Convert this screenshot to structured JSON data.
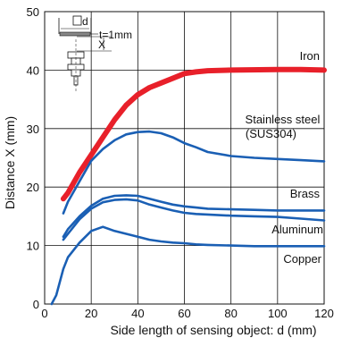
{
  "chart_data": {
    "type": "line",
    "xlabel": "Side length of sensing object: d (mm)",
    "ylabel": "Distance X (mm)",
    "xlim": [
      0,
      120
    ],
    "ylim": [
      0,
      50
    ],
    "xticks": [
      "0",
      "20",
      "40",
      "60",
      "80",
      "100",
      "120"
    ],
    "yticks": [
      "0",
      "10",
      "20",
      "30",
      "40",
      "50"
    ],
    "grid": true,
    "legend": "none",
    "inset_diagram": {
      "labels": [
        "d",
        "t=1mm",
        "X"
      ]
    },
    "series": [
      {
        "name": "Iron",
        "color": "#e8202a",
        "points": [
          [
            8,
            18
          ],
          [
            10,
            19
          ],
          [
            15,
            22.5
          ],
          [
            20,
            25.5
          ],
          [
            25,
            28.5
          ],
          [
            30,
            31.5
          ],
          [
            35,
            34
          ],
          [
            40,
            35.8
          ],
          [
            45,
            37
          ],
          [
            50,
            37.8
          ],
          [
            55,
            38.6
          ],
          [
            60,
            39.4
          ],
          [
            65,
            39.7
          ],
          [
            70,
            39.9
          ],
          [
            80,
            40
          ],
          [
            100,
            40.1
          ],
          [
            110,
            40.1
          ],
          [
            120,
            40
          ]
        ]
      },
      {
        "name": "Stainless steel\n(SUS304)",
        "color": "#1a5fb4",
        "points": [
          [
            8,
            15.5
          ],
          [
            10,
            17.5
          ],
          [
            15,
            21
          ],
          [
            20,
            24.5
          ],
          [
            25,
            26.5
          ],
          [
            30,
            28
          ],
          [
            35,
            29
          ],
          [
            40,
            29.4
          ],
          [
            45,
            29.5
          ],
          [
            50,
            29.2
          ],
          [
            55,
            28.5
          ],
          [
            60,
            27.5
          ],
          [
            65,
            26.8
          ],
          [
            70,
            26
          ],
          [
            80,
            25.3
          ],
          [
            90,
            25
          ],
          [
            100,
            24.8
          ],
          [
            110,
            24.6
          ],
          [
            120,
            24.4
          ]
        ]
      },
      {
        "name": "Brass",
        "color": "#1a5fb4",
        "points": [
          [
            8,
            11.5
          ],
          [
            10,
            12.8
          ],
          [
            15,
            15
          ],
          [
            20,
            16.8
          ],
          [
            25,
            18
          ],
          [
            30,
            18.5
          ],
          [
            35,
            18.6
          ],
          [
            40,
            18.5
          ],
          [
            45,
            18
          ],
          [
            50,
            17.5
          ],
          [
            55,
            17
          ],
          [
            60,
            16.7
          ],
          [
            65,
            16.5
          ],
          [
            70,
            16.3
          ],
          [
            80,
            16.2
          ],
          [
            90,
            16.1
          ],
          [
            100,
            16
          ],
          [
            110,
            16
          ],
          [
            120,
            16
          ]
        ]
      },
      {
        "name": "Aluminum",
        "color": "#1a5fb4",
        "points": [
          [
            8,
            11
          ],
          [
            10,
            12
          ],
          [
            15,
            14.5
          ],
          [
            20,
            16.3
          ],
          [
            25,
            17.4
          ],
          [
            30,
            17.8
          ],
          [
            35,
            17.9
          ],
          [
            40,
            17.7
          ],
          [
            45,
            17
          ],
          [
            50,
            16.5
          ],
          [
            55,
            16
          ],
          [
            60,
            15.6
          ],
          [
            65,
            15.4
          ],
          [
            70,
            15.3
          ],
          [
            80,
            15.1
          ],
          [
            90,
            15
          ],
          [
            100,
            14.9
          ],
          [
            110,
            14.6
          ],
          [
            120,
            14.3
          ]
        ]
      },
      {
        "name": "Copper",
        "color": "#1a5fb4",
        "points": [
          [
            3,
            0
          ],
          [
            5,
            1.5
          ],
          [
            8,
            6
          ],
          [
            10,
            8
          ],
          [
            15,
            10.5
          ],
          [
            20,
            12.5
          ],
          [
            25,
            13.2
          ],
          [
            30,
            12.5
          ],
          [
            35,
            12
          ],
          [
            40,
            11.5
          ],
          [
            45,
            11
          ],
          [
            50,
            10.7
          ],
          [
            55,
            10.5
          ],
          [
            60,
            10.4
          ],
          [
            65,
            10.2
          ],
          [
            70,
            10.1
          ],
          [
            80,
            10
          ],
          [
            90,
            9.9
          ],
          [
            100,
            9.9
          ],
          [
            110,
            9.9
          ],
          [
            120,
            9.9
          ]
        ]
      }
    ]
  }
}
